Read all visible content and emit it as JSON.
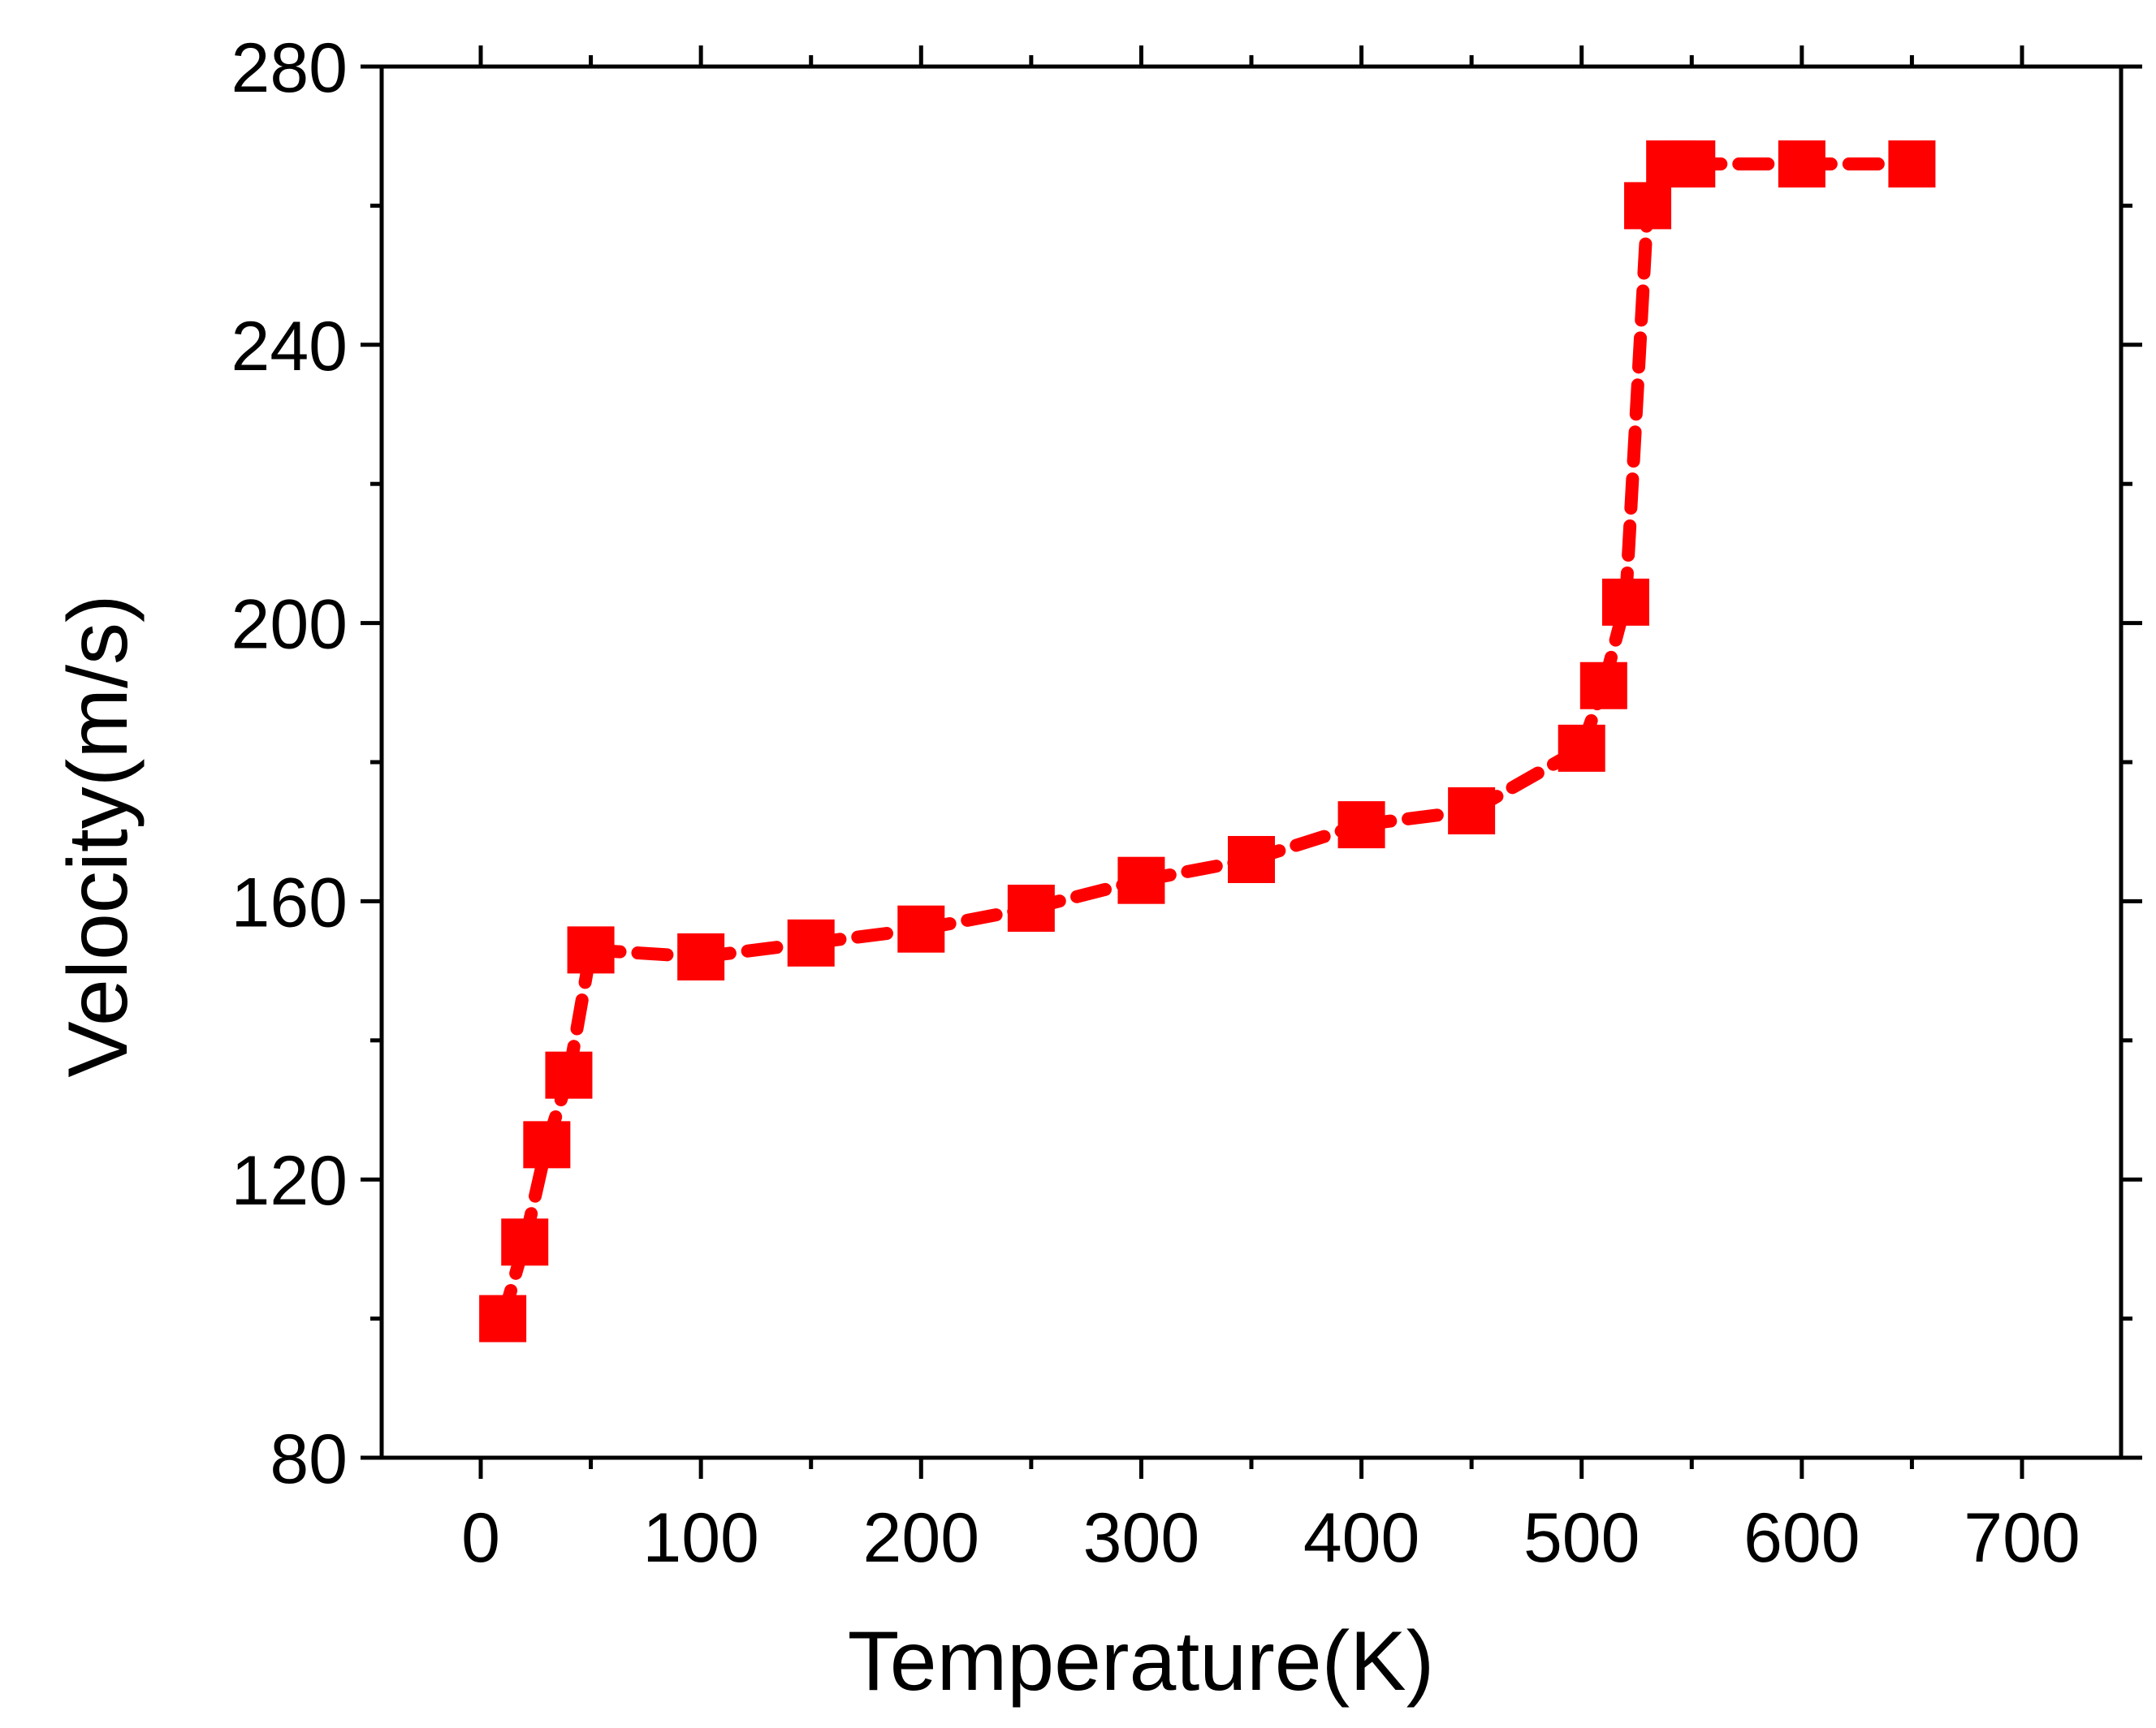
{
  "chart_data": {
    "type": "line",
    "title": "",
    "xlabel": "Temperature(K)",
    "ylabel": "Velocity(m/s)",
    "xlim": [
      -45,
      745
    ],
    "ylim": [
      80,
      280
    ],
    "xticks": [
      0,
      100,
      200,
      300,
      400,
      500,
      600,
      700
    ],
    "xtick_labels": [
      "0",
      "100",
      "200",
      "300",
      "400",
      "500",
      "600",
      "700"
    ],
    "yticks": [
      80,
      120,
      160,
      200,
      240,
      280
    ],
    "ytick_labels": [
      "80",
      "120",
      "160",
      "200",
      "240",
      "280"
    ],
    "x_minor_step": 50,
    "y_minor_step": 20,
    "grid": false,
    "legend": "none",
    "series": [
      {
        "name": "Velocity",
        "color": "#ff0000",
        "marker": "square",
        "line_style": "dashed",
        "x": [
          10,
          20,
          30,
          40,
          50,
          100,
          150,
          200,
          250,
          300,
          350,
          400,
          450,
          500,
          510,
          520,
          530,
          540,
          550,
          600,
          650
        ],
        "y": [
          100,
          111,
          125,
          135,
          153,
          152,
          154,
          156,
          159,
          163,
          166,
          171,
          173,
          182,
          191,
          203,
          260,
          266,
          266,
          266,
          266
        ]
      }
    ]
  }
}
